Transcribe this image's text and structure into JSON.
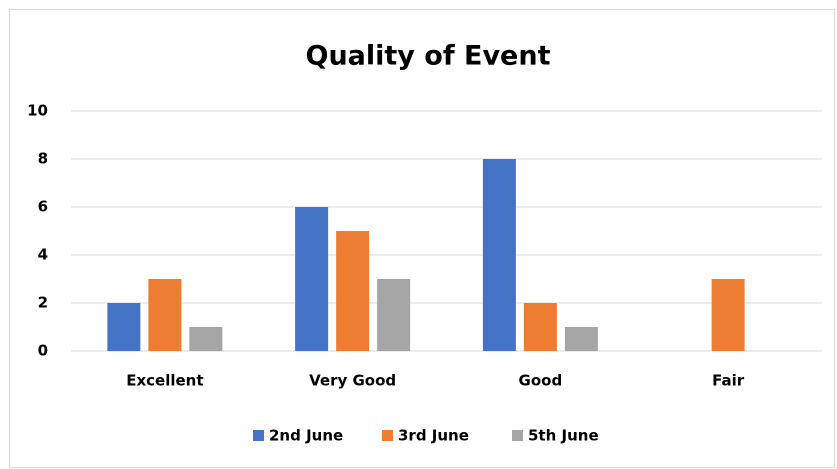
{
  "chart_data": {
    "type": "bar",
    "title": "Quality of Event",
    "categories": [
      "Excellent",
      "Very Good",
      "Good",
      "Fair"
    ],
    "series": [
      {
        "name": "2nd June",
        "color": "#4472c4",
        "values": [
          2,
          6,
          8,
          0
        ]
      },
      {
        "name": "3rd June",
        "color": "#ed7d31",
        "values": [
          3,
          5,
          2,
          3
        ]
      },
      {
        "name": "5th June",
        "color": "#a5a5a5",
        "values": [
          1,
          3,
          1,
          0
        ]
      }
    ],
    "ylim": [
      0,
      10
    ],
    "yticks": [
      0,
      2,
      4,
      6,
      8,
      10
    ],
    "grid": true,
    "legend": "bottom"
  }
}
